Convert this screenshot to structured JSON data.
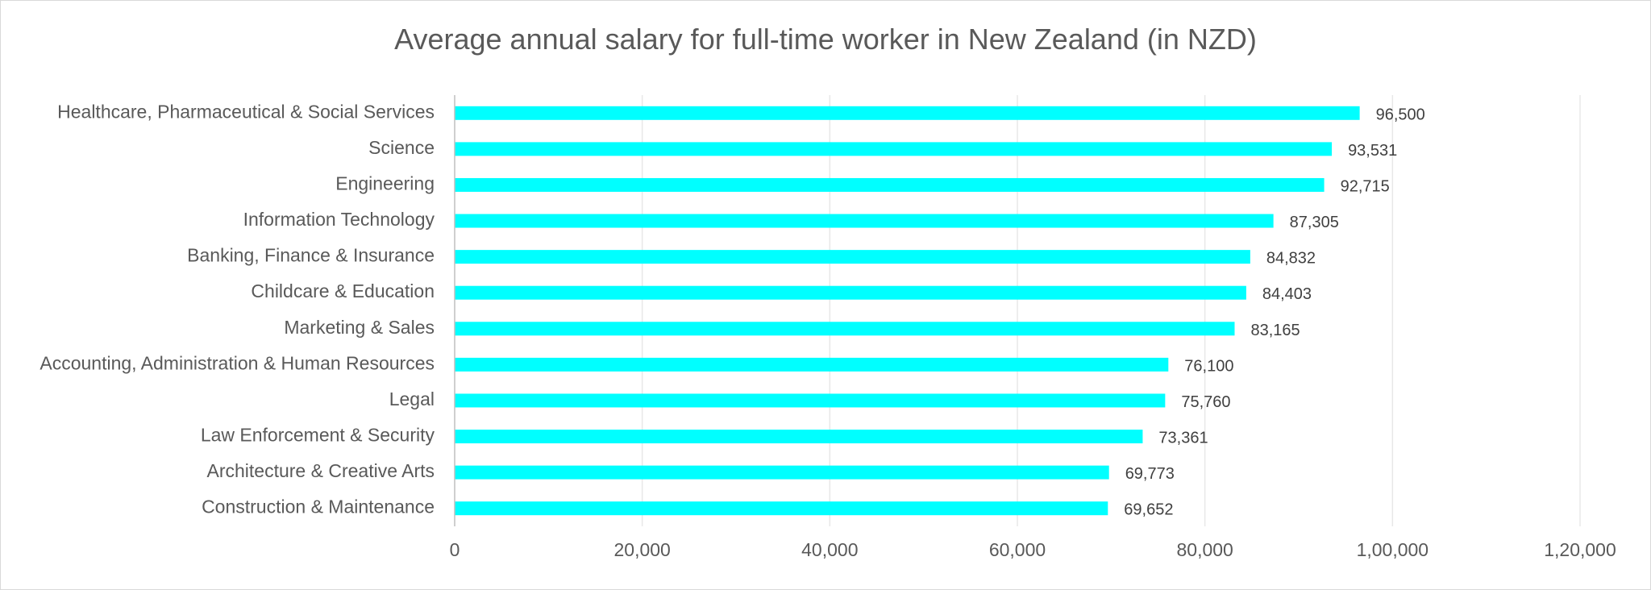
{
  "chart_data": {
    "type": "bar",
    "orientation": "horizontal",
    "title": "Average annual salary for full-time worker in New Zealand (in NZD)",
    "xlabel": "",
    "ylabel": "",
    "xlim": [
      0,
      120000
    ],
    "grid": true,
    "legend": "none",
    "bar_color": "#00FFFF",
    "x_ticks": [
      {
        "value": 0,
        "label": "0"
      },
      {
        "value": 20000,
        "label": "20,000"
      },
      {
        "value": 40000,
        "label": "40,000"
      },
      {
        "value": 60000,
        "label": "60,000"
      },
      {
        "value": 80000,
        "label": "80,000"
      },
      {
        "value": 100000,
        "label": "1,00,000"
      },
      {
        "value": 120000,
        "label": "1,20,000"
      }
    ],
    "categories": [
      "Healthcare, Pharmaceutical & Social Services",
      "Science",
      "Engineering",
      "Information Technology",
      "Banking, Finance & Insurance",
      "Childcare & Education",
      "Marketing & Sales",
      "Accounting, Administration & Human Resources",
      "Legal",
      "Law Enforcement & Security",
      "Architecture & Creative Arts",
      "Construction & Maintenance"
    ],
    "values": [
      96500,
      93531,
      92715,
      87305,
      84832,
      84403,
      83165,
      76100,
      75760,
      73361,
      69773,
      69652
    ],
    "data_labels": [
      "96,500",
      "93,531",
      "92,715",
      "87,305",
      "84,832",
      "84,403",
      "83,165",
      "76,100",
      "75,760",
      "73,361",
      "69,773",
      "69,652"
    ]
  }
}
